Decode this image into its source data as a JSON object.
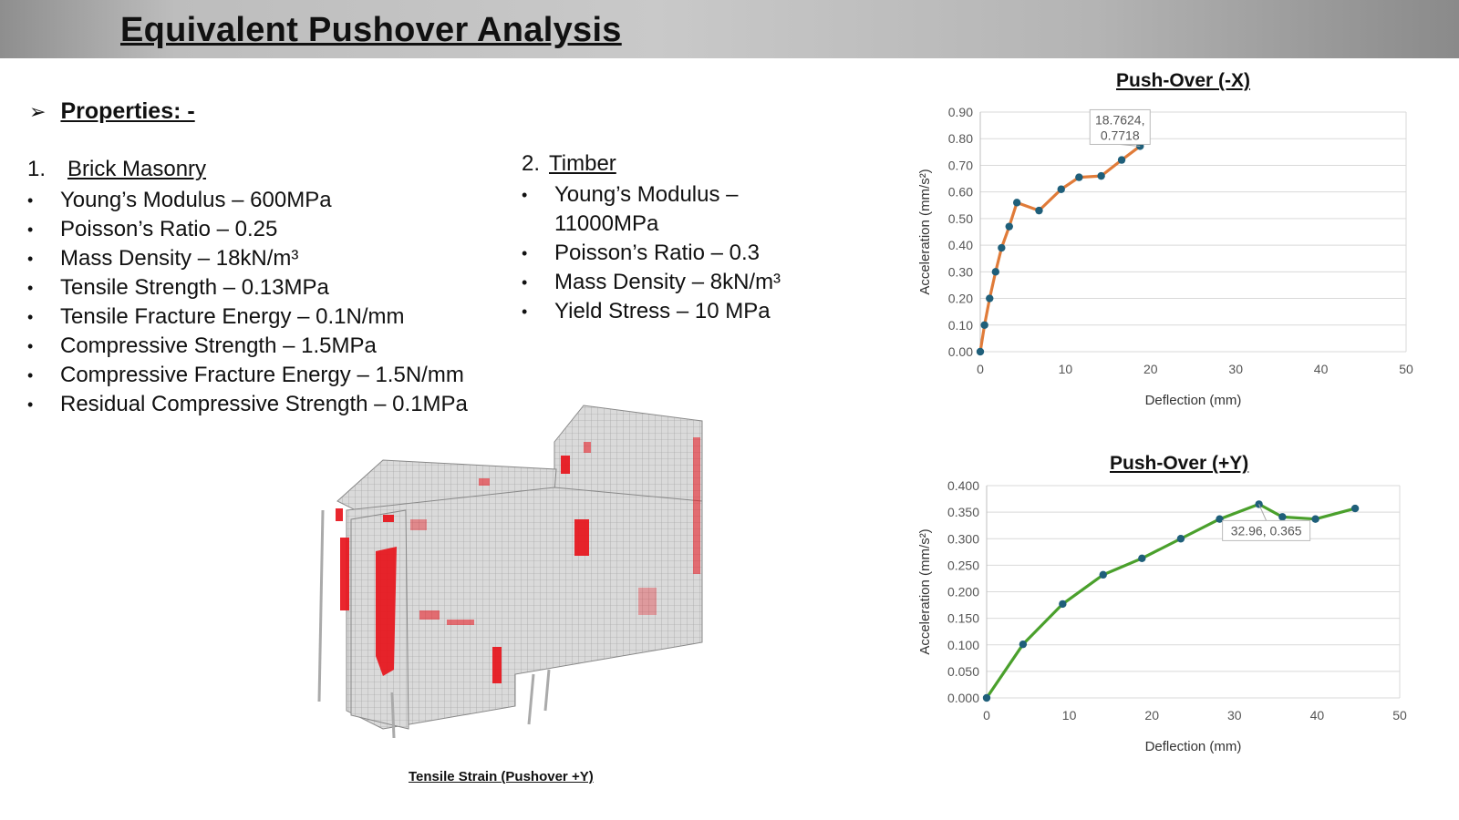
{
  "header": {
    "title": "Equivalent Pushover Analysis"
  },
  "properties": {
    "arrow": "➢",
    "heading": "Properties: -",
    "groups": [
      {
        "number": "1.",
        "name": "Brick Masonry",
        "items": [
          "Young’s Modulus – 600MPa",
          "Poisson’s Ratio – 0.25",
          "Mass Density – 18kN/m³",
          "Tensile Strength – 0.13MPa",
          "Tensile Fracture Energy – 0.1N/mm",
          "Compressive Strength – 1.5MPa",
          "Compressive Fracture Energy – 1.5N/mm",
          "Residual Compressive Strength – 0.1MPa"
        ]
      },
      {
        "number": "2.",
        "name": "Timber",
        "items": [
          "Young’s Modulus – 11000MPa",
          "Poisson’s Ratio – 0.3",
          "Mass Density – 8kN/m³",
          "Yield Stress – 10 MPa"
        ]
      }
    ]
  },
  "model": {
    "caption": "Tensile Strain (Pushover +Y)",
    "mesh_color": "#d8d8d8",
    "strain_color": "#e8141c"
  },
  "chart_data": [
    {
      "type": "line",
      "title": "Push-Over (-X)",
      "xlabel": "Deflection (mm)",
      "ylabel": "Acceleration (mm/s²)",
      "xlim": [
        0,
        50
      ],
      "ylim": [
        0,
        0.9
      ],
      "xticks": [
        "0",
        "10",
        "20",
        "30",
        "40",
        "50"
      ],
      "yticks": [
        "0.00",
        "0.10",
        "0.20",
        "0.30",
        "0.40",
        "0.50",
        "0.60",
        "0.70",
        "0.80",
        "0.90"
      ],
      "grid": true,
      "line_color": "#e07b39",
      "marker_color": "#1f5f7a",
      "series": [
        {
          "x": [
            0,
            0.5,
            1.1,
            1.8,
            2.5,
            3.4,
            4.3,
            6.9,
            9.5,
            11.6,
            14.2,
            16.6,
            18.7624
          ],
          "y": [
            0.0,
            0.1,
            0.2,
            0.3,
            0.39,
            0.47,
            0.56,
            0.53,
            0.61,
            0.655,
            0.66,
            0.72,
            0.7718
          ]
        }
      ],
      "annotation": {
        "text_line1": "18.7624,",
        "text_line2": "0.7718",
        "x": 18.7624,
        "y": 0.7718
      }
    },
    {
      "type": "line",
      "title": "Push-Over (+Y)",
      "xlabel": "Deflection (mm)",
      "ylabel": "Acceleration (mm/s²)",
      "xlim": [
        0,
        50
      ],
      "ylim": [
        0,
        0.4
      ],
      "xticks": [
        "0",
        "10",
        "20",
        "30",
        "40",
        "50"
      ],
      "yticks": [
        "0.000",
        "0.050",
        "0.100",
        "0.150",
        "0.200",
        "0.250",
        "0.300",
        "0.350",
        "0.400"
      ],
      "grid": true,
      "line_color": "#4aa02c",
      "marker_color": "#1f5f7a",
      "series": [
        {
          "x": [
            0,
            4.4,
            9.2,
            14.1,
            18.8,
            23.5,
            28.2,
            32.96,
            35.8,
            39.8,
            44.6
          ],
          "y": [
            0.0,
            0.101,
            0.177,
            0.232,
            0.263,
            0.3,
            0.337,
            0.365,
            0.341,
            0.337,
            0.357
          ]
        }
      ],
      "annotation": {
        "text_line1": "32.96, 0.365",
        "text_line2": "",
        "x": 32.96,
        "y": 0.365
      }
    }
  ]
}
